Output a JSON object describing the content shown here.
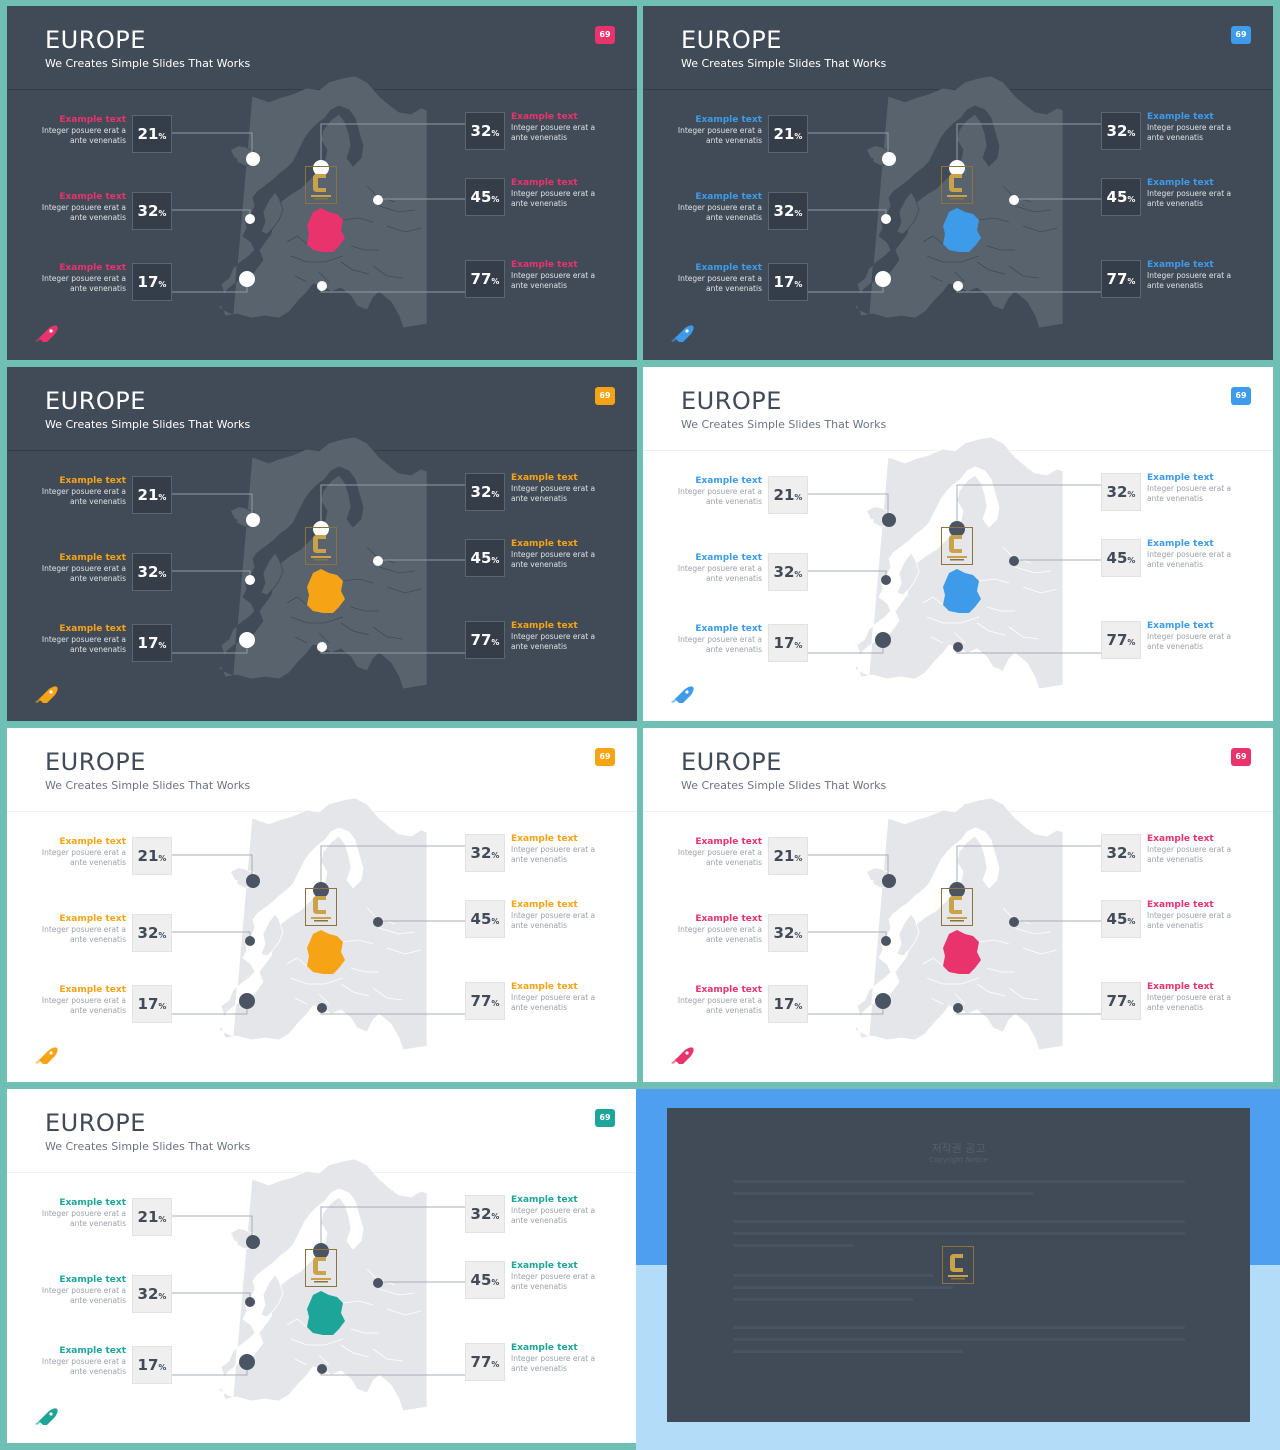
{
  "colors": {
    "pink": "#e8336d",
    "blue": "#3d9be9",
    "orange": "#f6a316",
    "teal": "#1ea59a",
    "dark_bg": "#414b58",
    "light_bg": "#ffffff"
  },
  "icons": {
    "corner": "rocket-icon",
    "logo": "contents-logo",
    "map": "europe-map"
  },
  "slides": [
    {
      "theme": "dark",
      "accent": "pink",
      "title": "EUROPE",
      "subtitle": "We Creates Simple Slides That Works",
      "badge": "69",
      "items": [
        {
          "heading": "Example text",
          "body": "Integer posuere erat a ante venenatis",
          "value": "21",
          "unit": "%"
        },
        {
          "heading": "Example text",
          "body": "Integer posuere erat a ante venenatis",
          "value": "32",
          "unit": "%"
        },
        {
          "heading": "Example text",
          "body": "Integer posuere erat a ante venenatis",
          "value": "17",
          "unit": "%"
        },
        {
          "heading": "Example text",
          "body": "Integer posuere erat a ante venenatis",
          "value": "32",
          "unit": "%"
        },
        {
          "heading": "Example text",
          "body": "Integer posuere erat a ante venenatis",
          "value": "45",
          "unit": "%"
        },
        {
          "heading": "Example text",
          "body": "Integer posuere erat a ante venenatis",
          "value": "77",
          "unit": "%"
        }
      ]
    },
    {
      "theme": "dark",
      "accent": "blue",
      "title": "EUROPE",
      "subtitle": "We Creates Simple Slides That Works",
      "badge": "69",
      "items": [
        {
          "heading": "Example text",
          "body": "Integer posuere erat a ante venenatis",
          "value": "21",
          "unit": "%"
        },
        {
          "heading": "Example text",
          "body": "Integer posuere erat a ante venenatis",
          "value": "32",
          "unit": "%"
        },
        {
          "heading": "Example text",
          "body": "Integer posuere erat a ante venenatis",
          "value": "17",
          "unit": "%"
        },
        {
          "heading": "Example text",
          "body": "Integer posuere erat a ante venenatis",
          "value": "32",
          "unit": "%"
        },
        {
          "heading": "Example text",
          "body": "Integer posuere erat a ante venenatis",
          "value": "45",
          "unit": "%"
        },
        {
          "heading": "Example text",
          "body": "Integer posuere erat a ante venenatis",
          "value": "77",
          "unit": "%"
        }
      ]
    },
    {
      "theme": "dark",
      "accent": "orange",
      "title": "EUROPE",
      "subtitle": "We Creates Simple Slides That Works",
      "badge": "69",
      "items": [
        {
          "heading": "Example text",
          "body": "Integer posuere erat a ante venenatis",
          "value": "21",
          "unit": "%"
        },
        {
          "heading": "Example text",
          "body": "Integer posuere erat a ante venenatis",
          "value": "32",
          "unit": "%"
        },
        {
          "heading": "Example text",
          "body": "Integer posuere erat a ante venenatis",
          "value": "17",
          "unit": "%"
        },
        {
          "heading": "Example text",
          "body": "Integer posuere erat a ante venenatis",
          "value": "32",
          "unit": "%"
        },
        {
          "heading": "Example text",
          "body": "Integer posuere erat a ante venenatis",
          "value": "45",
          "unit": "%"
        },
        {
          "heading": "Example text",
          "body": "Integer posuere erat a ante venenatis",
          "value": "77",
          "unit": "%"
        }
      ]
    },
    {
      "theme": "light",
      "accent": "blue",
      "title": "EUROPE",
      "subtitle": "We Creates Simple Slides That Works",
      "badge": "69",
      "items": [
        {
          "heading": "Example text",
          "body": "Integer posuere erat a ante venenatis",
          "value": "21",
          "unit": "%"
        },
        {
          "heading": "Example text",
          "body": "Integer posuere erat a ante venenatis",
          "value": "32",
          "unit": "%"
        },
        {
          "heading": "Example text",
          "body": "Integer posuere erat a ante venenatis",
          "value": "17",
          "unit": "%"
        },
        {
          "heading": "Example text",
          "body": "Integer posuere erat a ante venenatis",
          "value": "32",
          "unit": "%"
        },
        {
          "heading": "Example text",
          "body": "Integer posuere erat a ante venenatis",
          "value": "45",
          "unit": "%"
        },
        {
          "heading": "Example text",
          "body": "Integer posuere erat a ante venenatis",
          "value": "77",
          "unit": "%"
        }
      ]
    },
    {
      "theme": "light",
      "accent": "orange",
      "title": "EUROPE",
      "subtitle": "We Creates Simple Slides That Works",
      "badge": "69",
      "items": [
        {
          "heading": "Example text",
          "body": "Integer posuere erat a ante venenatis",
          "value": "21",
          "unit": "%"
        },
        {
          "heading": "Example text",
          "body": "Integer posuere erat a ante venenatis",
          "value": "32",
          "unit": "%"
        },
        {
          "heading": "Example text",
          "body": "Integer posuere erat a ante venenatis",
          "value": "17",
          "unit": "%"
        },
        {
          "heading": "Example text",
          "body": "Integer posuere erat a ante venenatis",
          "value": "32",
          "unit": "%"
        },
        {
          "heading": "Example text",
          "body": "Integer posuere erat a ante venenatis",
          "value": "45",
          "unit": "%"
        },
        {
          "heading": "Example text",
          "body": "Integer posuere erat a ante venenatis",
          "value": "77",
          "unit": "%"
        }
      ]
    },
    {
      "theme": "light",
      "accent": "pink",
      "title": "EUROPE",
      "subtitle": "We Creates Simple Slides That Works",
      "badge": "69",
      "items": [
        {
          "heading": "Example text",
          "body": "Integer posuere erat a ante venenatis",
          "value": "21",
          "unit": "%"
        },
        {
          "heading": "Example text",
          "body": "Integer posuere erat a ante venenatis",
          "value": "32",
          "unit": "%"
        },
        {
          "heading": "Example text",
          "body": "Integer posuere erat a ante venenatis",
          "value": "17",
          "unit": "%"
        },
        {
          "heading": "Example text",
          "body": "Integer posuere erat a ante venenatis",
          "value": "32",
          "unit": "%"
        },
        {
          "heading": "Example text",
          "body": "Integer posuere erat a ante venenatis",
          "value": "45",
          "unit": "%"
        },
        {
          "heading": "Example text",
          "body": "Integer posuere erat a ante venenatis",
          "value": "77",
          "unit": "%"
        }
      ]
    },
    {
      "theme": "light",
      "accent": "teal",
      "title": "EUROPE",
      "subtitle": "We Creates Simple Slides That Works",
      "badge": "69",
      "items": [
        {
          "heading": "Example text",
          "body": "Integer posuere erat a ante venenatis",
          "value": "21",
          "unit": "%"
        },
        {
          "heading": "Example text",
          "body": "Integer posuere erat a ante venenatis",
          "value": "32",
          "unit": "%"
        },
        {
          "heading": "Example text",
          "body": "Integer posuere erat a ante venenatis",
          "value": "17",
          "unit": "%"
        },
        {
          "heading": "Example text",
          "body": "Integer posuere erat a ante venenatis",
          "value": "32",
          "unit": "%"
        },
        {
          "heading": "Example text",
          "body": "Integer posuere erat a ante venenatis",
          "value": "45",
          "unit": "%"
        },
        {
          "heading": "Example text",
          "body": "Integer posuere erat a ante venenatis",
          "value": "77",
          "unit": "%"
        }
      ]
    }
  ],
  "notice": {
    "title": "저작권 공고",
    "subtitle": "Copyright Notice"
  }
}
